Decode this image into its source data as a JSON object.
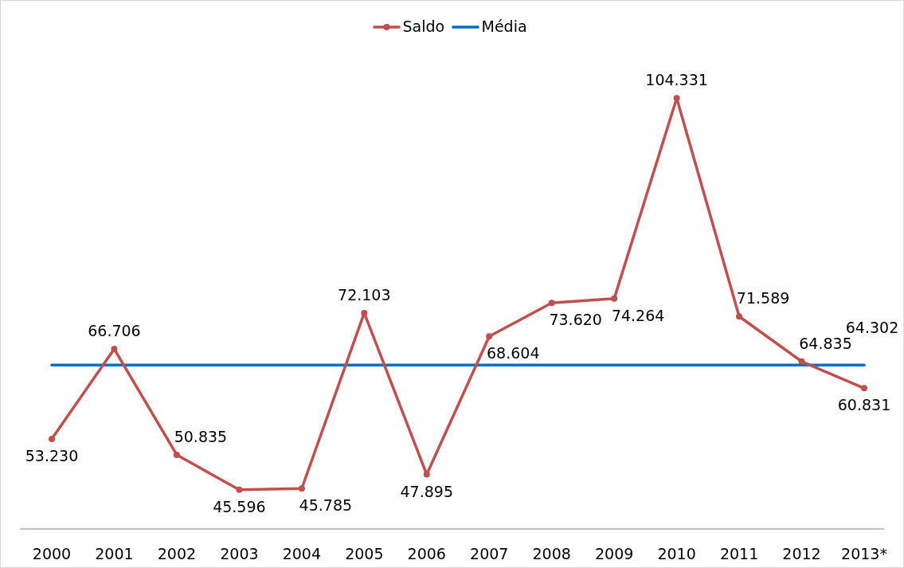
{
  "chart_data": {
    "type": "line",
    "categories": [
      "2000",
      "2001",
      "2002",
      "2003",
      "2004",
      "2005",
      "2006",
      "2007",
      "2008",
      "2009",
      "2010",
      "2011",
      "2012",
      "2013*"
    ],
    "series": [
      {
        "name": "Saldo",
        "color": "#c0504d",
        "marker": "circle",
        "values": [
          53230,
          66706,
          50835,
          45596,
          45785,
          72103,
          47895,
          68604,
          73620,
          74264,
          104331,
          71589,
          64835,
          60831
        ],
        "value_labels": [
          "53.230",
          "66.706",
          "50.835",
          "45.596",
          "45.785",
          "72.103",
          "47.895",
          "68.604",
          "73.620",
          "74.264",
          "104.331",
          "71.589",
          "64.835",
          "60.831"
        ]
      },
      {
        "name": "Média",
        "color": "#0070c0",
        "marker": "none",
        "values": [
          64302,
          64302,
          64302,
          64302,
          64302,
          64302,
          64302,
          64302,
          64302,
          64302,
          64302,
          64302,
          64302,
          64302
        ],
        "value_labels": [
          null,
          null,
          null,
          null,
          null,
          null,
          null,
          null,
          null,
          null,
          null,
          null,
          null,
          "64.302"
        ]
      }
    ],
    "tick_labels": "x",
    "legend": "top"
  }
}
